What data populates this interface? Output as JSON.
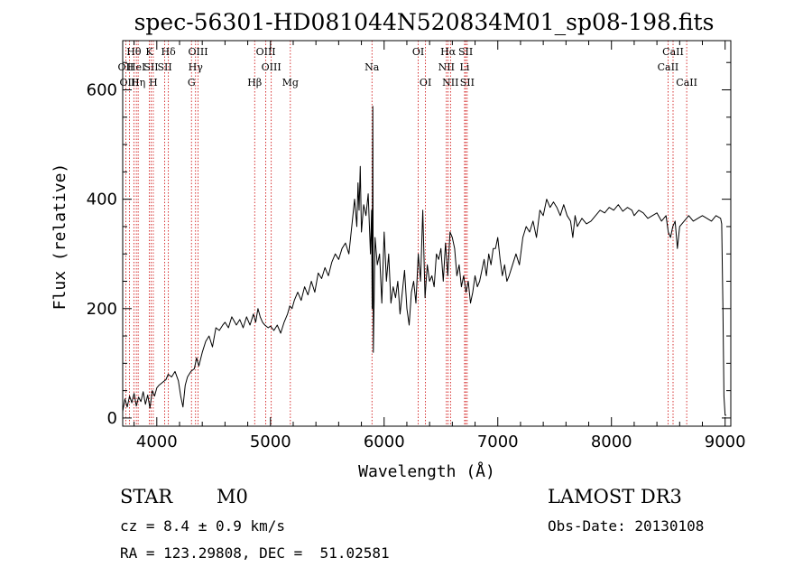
{
  "chart_data": {
    "type": "line",
    "title": "spec-56301-HD081044N520834M01_sp08-198.fits",
    "xlabel": "Wavelength (Å)",
    "ylabel": "Flux (relative)",
    "xlim": [
      3700,
      9050
    ],
    "ylim": [
      -15,
      690
    ],
    "xticks": [
      4000,
      5000,
      6000,
      7000,
      8000,
      9000
    ],
    "yticks": [
      0,
      200,
      400,
      600
    ],
    "grid": false,
    "series": [
      {
        "x": [
          3700,
          3720,
          3740,
          3760,
          3780,
          3800,
          3820,
          3840,
          3860,
          3880,
          3900,
          3920,
          3940,
          3960,
          3980,
          4000,
          4020,
          4050,
          4080,
          4100,
          4130,
          4160,
          4190,
          4210,
          4230,
          4250,
          4270,
          4300,
          4330,
          4350,
          4370,
          4400,
          4430,
          4460,
          4490,
          4520,
          4550,
          4580,
          4600,
          4630,
          4660,
          4700,
          4730,
          4760,
          4790,
          4820,
          4850,
          4870,
          4890,
          4910,
          4930,
          4950,
          4980,
          5000,
          5030,
          5060,
          5090,
          5120,
          5150,
          5170,
          5190,
          5210,
          5240,
          5270,
          5300,
          5330,
          5360,
          5390,
          5420,
          5450,
          5480,
          5510,
          5540,
          5570,
          5600,
          5630,
          5660,
          5690,
          5720,
          5740,
          5760,
          5770,
          5780,
          5790,
          5800,
          5820,
          5840,
          5860,
          5880,
          5890,
          5895,
          5900,
          5905,
          5920,
          5940,
          5960,
          5980,
          6000,
          6020,
          6040,
          6060,
          6080,
          6100,
          6120,
          6140,
          6160,
          6180,
          6200,
          6220,
          6240,
          6260,
          6280,
          6300,
          6320,
          6340,
          6360,
          6380,
          6400,
          6420,
          6440,
          6460,
          6480,
          6500,
          6520,
          6540,
          6560,
          6580,
          6600,
          6620,
          6640,
          6660,
          6680,
          6700,
          6720,
          6740,
          6760,
          6780,
          6800,
          6820,
          6840,
          6860,
          6880,
          6900,
          6920,
          6940,
          6960,
          6980,
          7000,
          7020,
          7040,
          7060,
          7080,
          7100,
          7130,
          7160,
          7190,
          7220,
          7250,
          7280,
          7310,
          7340,
          7370,
          7400,
          7430,
          7460,
          7490,
          7520,
          7550,
          7580,
          7610,
          7640,
          7660,
          7680,
          7700,
          7740,
          7780,
          7820,
          7860,
          7900,
          7940,
          7980,
          8020,
          8060,
          8100,
          8140,
          8180,
          8200,
          8240,
          8280,
          8320,
          8360,
          8400,
          8440,
          8480,
          8500,
          8520,
          8540,
          8560,
          8580,
          8600,
          8620,
          8640,
          8660,
          8680,
          8720,
          8760,
          8800,
          8840,
          8880,
          8920,
          8960,
          8970,
          8980,
          8990,
          9000,
          9010
        ],
        "values": [
          12,
          35,
          20,
          40,
          28,
          45,
          22,
          38,
          30,
          48,
          25,
          42,
          18,
          50,
          40,
          55,
          60,
          65,
          70,
          80,
          75,
          85,
          68,
          40,
          20,
          60,
          75,
          85,
          90,
          110,
          95,
          120,
          140,
          150,
          130,
          165,
          160,
          170,
          175,
          165,
          185,
          170,
          180,
          165,
          185,
          170,
          190,
          175,
          200,
          185,
          175,
          170,
          165,
          168,
          160,
          170,
          155,
          175,
          190,
          205,
          200,
          215,
          230,
          215,
          240,
          225,
          250,
          230,
          265,
          255,
          275,
          260,
          285,
          300,
          290,
          310,
          320,
          300,
          360,
          400,
          350,
          430,
          380,
          460,
          340,
          390,
          370,
          410,
          300,
          380,
          200,
          570,
          120,
          330,
          280,
          300,
          210,
          340,
          250,
          300,
          210,
          240,
          220,
          250,
          190,
          230,
          270,
          200,
          170,
          230,
          250,
          210,
          300,
          250,
          380,
          220,
          280,
          250,
          260,
          240,
          300,
          290,
          310,
          250,
          320,
          260,
          340,
          330,
          310,
          260,
          280,
          240,
          260,
          230,
          250,
          210,
          230,
          260,
          240,
          250,
          270,
          290,
          260,
          300,
          280,
          310,
          310,
          330,
          290,
          260,
          280,
          250,
          260,
          280,
          300,
          280,
          330,
          350,
          340,
          360,
          330,
          380,
          370,
          400,
          385,
          395,
          385,
          370,
          390,
          370,
          360,
          330,
          370,
          350,
          365,
          355,
          360,
          370,
          380,
          375,
          385,
          380,
          390,
          378,
          385,
          380,
          370,
          380,
          375,
          365,
          370,
          375,
          360,
          370,
          340,
          330,
          350,
          360,
          310,
          350,
          355,
          360,
          365,
          370,
          360,
          365,
          370,
          365,
          360,
          370,
          365,
          355,
          210,
          40,
          5,
          5
        ]
      }
    ],
    "lines": [
      {
        "label": "Hθ",
        "x": 3798,
        "row": 1
      },
      {
        "label": "OII",
        "x": 3727,
        "row": 2
      },
      {
        "label": "OIII",
        "x": 3760,
        "row": 3
      },
      {
        "label": "HeI",
        "x": 3820,
        "row": 2
      },
      {
        "label": "Hη",
        "x": 3836,
        "row": 3
      },
      {
        "label": "K",
        "x": 3934,
        "row": 1
      },
      {
        "label": "SII",
        "x": 3950,
        "row": 2
      },
      {
        "label": "H",
        "x": 3969,
        "row": 3
      },
      {
        "label": "Hδ",
        "x": 4102,
        "row": 1
      },
      {
        "label": "SII",
        "x": 4070,
        "row": 2
      },
      {
        "label": "OIII",
        "x": 4363,
        "row": 1
      },
      {
        "label": "Hγ",
        "x": 4341,
        "row": 2
      },
      {
        "label": "G",
        "x": 4305,
        "row": 3
      },
      {
        "label": "Hβ",
        "x": 4861,
        "row": 3
      },
      {
        "label": "OIII",
        "x": 4959,
        "row": 1
      },
      {
        "label": "OIII",
        "x": 5007,
        "row": 2
      },
      {
        "label": "Mg",
        "x": 5175,
        "row": 3
      },
      {
        "label": "Na",
        "x": 5893,
        "row": 2
      },
      {
        "label": "OI",
        "x": 6300,
        "row": 1
      },
      {
        "label": "OI",
        "x": 6364,
        "row": 3
      },
      {
        "label": "Hα",
        "x": 6563,
        "row": 1
      },
      {
        "label": "NII",
        "x": 6548,
        "row": 2
      },
      {
        "label": "NII",
        "x": 6584,
        "row": 3
      },
      {
        "label": "SII",
        "x": 6717,
        "row": 1
      },
      {
        "label": "Li",
        "x": 6708,
        "row": 2
      },
      {
        "label": "SII",
        "x": 6731,
        "row": 3
      },
      {
        "label": "CaII",
        "x": 8542,
        "row": 1
      },
      {
        "label": "CaII",
        "x": 8498,
        "row": 2
      },
      {
        "label": "CaII",
        "x": 8662,
        "row": 3
      }
    ]
  },
  "info": {
    "object_type": "STAR",
    "subclass": "M0",
    "survey": "LAMOST DR3",
    "cz": "cz = 8.4 ± 0.9 km/s",
    "obs_date": "Obs-Date: 20130108",
    "radec": "RA = 123.29808, DEC =  51.02581"
  },
  "colors": {
    "spectrum": "#000000",
    "marker": "#cc0000",
    "axes": "#000000"
  }
}
